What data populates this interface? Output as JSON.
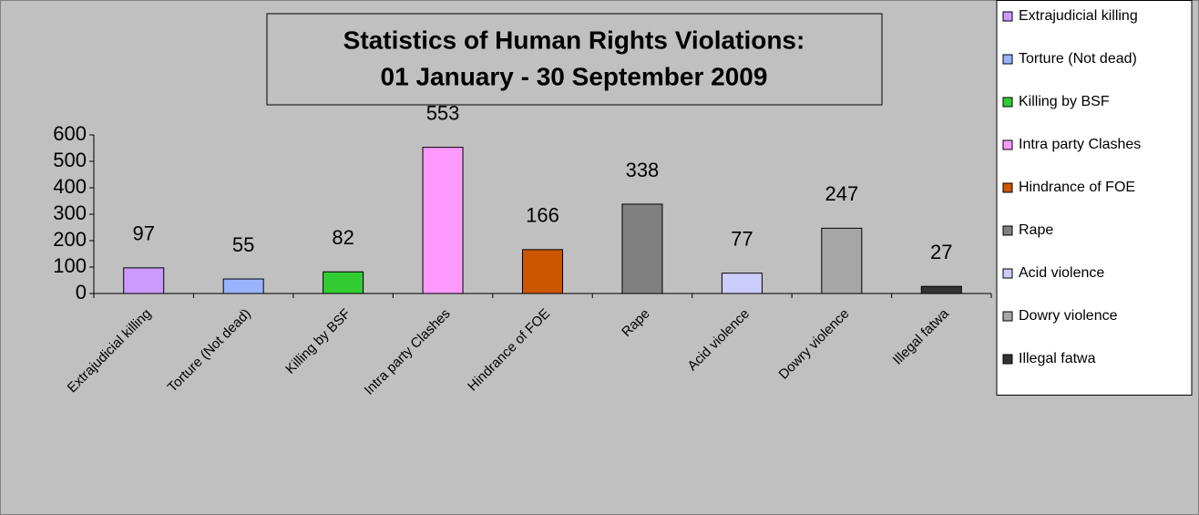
{
  "chart_data": {
    "type": "bar",
    "title": [
      "Statistics of Human Rights Violations:",
      "01 January - 30 September 2009"
    ],
    "categories": [
      "Extrajudicial killing",
      "Torture (Not dead)",
      "Killing by BSF",
      "Intra party Clashes",
      "Hindrance of FOE",
      "Rape",
      "Acid violence",
      "Dowry  violence",
      "Illegal fatwa"
    ],
    "values": [
      97,
      55,
      82,
      553,
      166,
      338,
      77,
      247,
      27
    ],
    "colors": [
      "#cc99ff",
      "#99b3ff",
      "#33cc33",
      "#ff99ff",
      "#cc5500",
      "#808080",
      "#ccccff",
      "#a6a6a6",
      "#333333"
    ],
    "ylim": [
      0,
      600
    ],
    "yticks": [
      0,
      100,
      200,
      300,
      400,
      500,
      600
    ],
    "legend": "right"
  }
}
